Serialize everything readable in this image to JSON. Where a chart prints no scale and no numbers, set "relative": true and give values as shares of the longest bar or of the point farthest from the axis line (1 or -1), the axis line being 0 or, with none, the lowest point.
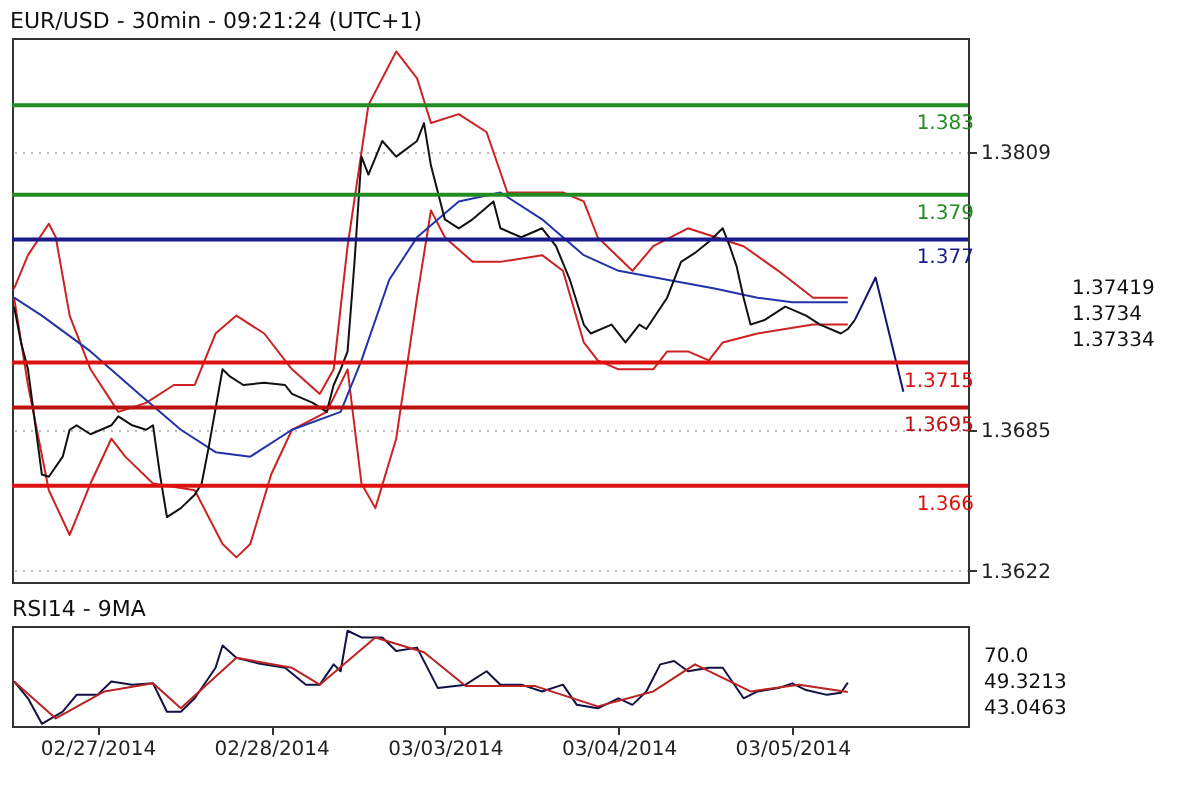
{
  "chart_data": [
    {
      "type": "line",
      "title": "EUR/USD - 30min - 09:21:24 (UTC+1)",
      "categories": [
        null,
        null,
        null,
        null,
        null,
        null,
        null,
        null,
        null,
        null,
        null,
        null,
        null,
        null,
        null,
        null,
        null,
        null,
        null,
        null,
        null,
        null,
        null,
        null,
        null,
        null,
        null,
        null,
        null,
        null,
        null,
        null,
        null,
        null,
        null,
        null,
        null,
        null,
        null,
        null,
        null,
        null,
        null,
        null,
        null,
        null,
        null,
        null,
        null,
        null,
        null,
        null,
        null,
        null,
        null,
        null,
        null,
        null,
        null,
        null,
        null,
        null,
        null,
        null,
        null,
        null,
        null,
        null,
        null,
        null,
        null,
        null,
        null,
        null,
        null,
        null,
        null,
        null,
        null,
        null,
        null,
        null,
        null,
        null,
        null,
        null,
        null,
        null,
        null,
        null,
        null,
        null,
        null,
        null,
        null,
        null,
        null,
        null,
        null,
        null,
        null,
        null,
        null,
        null,
        null,
        null,
        null,
        null,
        null,
        null,
        null,
        null,
        null,
        null,
        null,
        null,
        null,
        null,
        null,
        null,
        null,
        null,
        null,
        null,
        null,
        null,
        null,
        null,
        null,
        null,
        null,
        null,
        null,
        null,
        null,
        null,
        null,
        null
      ],
      "ylim": [
        1.3617,
        1.386
      ],
      "yticks": [
        1.3622,
        1.3685,
        1.3809
      ],
      "grid": "y",
      "tick_labels": "y",
      "series": [
        {
          "color": "#cc2222",
          "values": [
            1.3748,
            null,
            1.3763,
            null,
            null,
            1.3777,
            1.3771,
            null,
            1.3736,
            null,
            null,
            1.3712,
            null,
            null,
            null,
            1.3693,
            null,
            null,
            null,
            1.3697,
            null,
            null,
            null,
            1.3705,
            null,
            null,
            1.3705,
            null,
            null,
            1.3728,
            null,
            null,
            1.3736,
            null,
            null,
            null,
            1.3728,
            null,
            null,
            null,
            1.3712,
            null,
            null,
            null,
            1.3701,
            null,
            1.3712,
            null,
            1.3767,
            null,
            null,
            1.383,
            null,
            null,
            null,
            1.3854,
            null,
            null,
            1.3842,
            null,
            1.3822,
            null,
            null,
            null,
            1.3826,
            null,
            null,
            null,
            1.3818,
            null,
            null,
            1.3791,
            null,
            null,
            null,
            null,
            null,
            null,
            null,
            1.3791,
            null,
            null,
            1.3787,
            null,
            1.3771,
            null,
            null,
            null,
            null,
            1.3756,
            null,
            null,
            1.3767,
            null,
            null,
            null,
            null,
            1.3775,
            null,
            null,
            null,
            1.3771,
            null,
            null,
            null,
            1.3767,
            null,
            null,
            null,
            null,
            1.3756,
            null,
            null,
            null,
            null,
            1.3744,
            null,
            null,
            null,
            null,
            1.3744,
            null,
            null,
            null,
            null,
            null,
            null,
            null,
            null,
            null,
            null,
            null,
            null,
            null,
            null,
            null,
            null,
            null
          ]
        },
        {
          "color": "#cc2222",
          "values": [
            1.3744,
            null,
            1.3705,
            null,
            null,
            1.3658,
            null,
            null,
            1.3638,
            null,
            null,
            1.3661,
            null,
            null,
            1.3681,
            null,
            1.3673,
            null,
            null,
            null,
            1.3661,
            null,
            null,
            null,
            null,
            null,
            1.3658,
            null,
            null,
            null,
            1.3634,
            null,
            1.3628,
            null,
            1.3634,
            null,
            null,
            1.3665,
            null,
            null,
            1.3685,
            null,
            null,
            null,
            null,
            1.3693,
            null,
            null,
            1.3712,
            null,
            1.3661,
            null,
            1.365,
            null,
            null,
            1.3681,
            null,
            null,
            1.3744,
            null,
            1.3783,
            null,
            1.3771,
            null,
            null,
            null,
            1.376,
            null,
            null,
            null,
            1.376,
            null,
            null,
            null,
            null,
            null,
            1.3763,
            null,
            null,
            1.3756,
            null,
            null,
            1.3724,
            null,
            1.3716,
            null,
            null,
            1.3712,
            null,
            null,
            null,
            null,
            1.3712,
            null,
            1.372,
            null,
            null,
            1.372,
            null,
            null,
            1.3716,
            null,
            1.3724,
            null,
            null,
            null,
            null,
            1.3728,
            null,
            null,
            null,
            null,
            null,
            null,
            null,
            1.3732,
            null,
            null,
            null,
            null,
            1.3732,
            null,
            null,
            null,
            null,
            null,
            null,
            null,
            null,
            null,
            null,
            null,
            null,
            null,
            null,
            null,
            null,
            null
          ]
        },
        {
          "color": "#2233aa",
          "values": [
            1.3744,
            null,
            null,
            null,
            1.3736,
            null,
            null,
            null,
            null,
            null,
            null,
            1.372,
            null,
            null,
            null,
            null,
            null,
            null,
            1.3701,
            null,
            null,
            null,
            null,
            null,
            1.3685,
            null,
            null,
            null,
            null,
            1.3675,
            null,
            null,
            null,
            null,
            1.3673,
            null,
            null,
            null,
            null,
            null,
            1.3685,
            null,
            null,
            null,
            null,
            null,
            null,
            1.3693,
            null,
            null,
            1.3716,
            null,
            null,
            null,
            1.3752,
            null,
            null,
            null,
            1.3771,
            null,
            null,
            null,
            null,
            null,
            1.3787,
            null,
            null,
            null,
            null,
            null,
            1.3791,
            null,
            null,
            null,
            null,
            null,
            1.3779,
            null,
            null,
            null,
            null,
            null,
            1.3763,
            null,
            null,
            null,
            null,
            1.3756,
            null,
            null,
            null,
            null,
            null,
            null,
            1.3752,
            null,
            null,
            null,
            null,
            null,
            null,
            1.3748,
            null,
            null,
            null,
            null,
            null,
            1.3744,
            null,
            null,
            null,
            null,
            1.3742,
            null,
            null,
            null,
            null,
            null,
            null,
            null,
            1.3742,
            null,
            null,
            null,
            null,
            null,
            null,
            null,
            null,
            null,
            null,
            null,
            null,
            null,
            null,
            null,
            null,
            null
          ]
        },
        {
          "color": "#111111",
          "values": [
            1.374,
            1.3724,
            1.3712,
            null,
            1.3665,
            1.3664,
            null,
            1.3673,
            1.3685,
            1.3687,
            null,
            1.3683,
            null,
            null,
            1.3687,
            1.3691,
            null,
            1.3687,
            null,
            1.3685,
            1.3687,
            1.3665,
            1.3646,
            null,
            1.365,
            null,
            1.3656,
            1.3661,
            1.3677,
            null,
            1.3712,
            1.3709,
            null,
            1.3705,
            null,
            null,
            1.3706,
            null,
            null,
            1.3705,
            1.3701,
            null,
            null,
            1.3697,
            null,
            1.3693,
            1.3705,
            1.3712,
            1.372,
            1.376,
            1.3807,
            1.3799,
            null,
            1.3814,
            null,
            1.3807,
            null,
            null,
            1.3814,
            1.3822,
            1.3803,
            null,
            1.3779,
            null,
            1.3775,
            null,
            1.3779,
            null,
            null,
            1.3787,
            1.3775,
            null,
            null,
            1.3771,
            null,
            null,
            1.3775,
            null,
            1.3767,
            null,
            1.3752,
            null,
            1.3732,
            1.3728,
            null,
            null,
            1.3732,
            null,
            1.3724,
            null,
            1.3732,
            1.373,
            null,
            null,
            1.3744,
            null,
            1.376,
            null,
            1.3764,
            null,
            1.3769,
            null,
            1.3775,
            1.3767,
            1.3758,
            1.3744,
            1.3732,
            null,
            1.3734,
            null,
            null,
            1.374,
            null,
            null,
            1.3736,
            null,
            1.3732,
            null,
            null,
            1.3728,
            1.373,
            1.3734,
            null,
            null,
            null,
            null,
            null,
            null,
            null,
            null,
            null,
            null,
            null,
            null,
            null,
            null,
            null,
            null
          ]
        },
        {
          "color": "#14146e",
          "values": [
            null,
            null,
            null,
            null,
            null,
            null,
            null,
            null,
            null,
            null,
            null,
            null,
            null,
            null,
            null,
            null,
            null,
            null,
            null,
            null,
            null,
            null,
            null,
            null,
            null,
            null,
            null,
            null,
            null,
            null,
            null,
            null,
            null,
            null,
            null,
            null,
            null,
            null,
            null,
            null,
            null,
            null,
            null,
            null,
            null,
            null,
            null,
            null,
            null,
            null,
            null,
            null,
            null,
            null,
            null,
            null,
            null,
            null,
            null,
            null,
            null,
            null,
            null,
            null,
            null,
            null,
            null,
            null,
            null,
            null,
            null,
            null,
            null,
            null,
            null,
            null,
            null,
            null,
            null,
            null,
            null,
            null,
            null,
            null,
            null,
            null,
            null,
            null,
            null,
            null,
            null,
            null,
            null,
            null,
            null,
            null,
            null,
            null,
            null,
            null,
            null,
            null,
            null,
            null,
            null,
            null,
            null,
            null,
            null,
            null,
            null,
            null,
            null,
            null,
            null,
            null,
            null,
            null,
            null,
            null,
            null,
            1.3734,
            null,
            null,
            1.3753,
            null,
            null,
            null,
            1.3702,
            null,
            null,
            null,
            null,
            null,
            null,
            null,
            null,
            null
          ]
        }
      ],
      "ref_lines": [
        {
          "axis": "y",
          "value": 1.383,
          "label": "1.383",
          "color": "#228b22"
        },
        {
          "axis": "y",
          "value": 1.379,
          "label": "1.379",
          "color": "#228b22"
        },
        {
          "axis": "y",
          "value": 1.377,
          "label": "1.377",
          "color": "#1a1a8c"
        },
        {
          "axis": "y",
          "value": 1.3715,
          "label": "1.3715",
          "color": "#dd1111"
        },
        {
          "axis": "y",
          "value": 1.3695,
          "label": "1.3695",
          "color": "#bb1111"
        },
        {
          "axis": "y",
          "value": 1.366,
          "label": "1.366",
          "color": "#dd1111"
        }
      ],
      "annotations": [
        "1.37419",
        "1.3734",
        "1.37334"
      ]
    },
    {
      "type": "line",
      "title": "RSI14 - 9MA",
      "categories": [
        null,
        null,
        null,
        null,
        null,
        null,
        null,
        null,
        null,
        null,
        null,
        null,
        "02/27/2014",
        null,
        null,
        null,
        null,
        null,
        null,
        null,
        null,
        null,
        null,
        null,
        null,
        null,
        null,
        null,
        null,
        null,
        null,
        null,
        null,
        null,
        null,
        null,
        null,
        "02/28/2014",
        null,
        null,
        null,
        null,
        null,
        null,
        null,
        null,
        null,
        null,
        null,
        null,
        null,
        null,
        null,
        null,
        null,
        null,
        null,
        null,
        null,
        null,
        null,
        null,
        "03/03/2014",
        null,
        null,
        null,
        null,
        null,
        null,
        null,
        null,
        null,
        null,
        null,
        null,
        null,
        null,
        null,
        null,
        null,
        null,
        null,
        null,
        null,
        null,
        null,
        null,
        "03/04/2014",
        null,
        null,
        null,
        null,
        null,
        null,
        null,
        null,
        null,
        null,
        null,
        null,
        null,
        null,
        null,
        null,
        null,
        null,
        null,
        null,
        null,
        null,
        null,
        null,
        "03/05/2014",
        null,
        null,
        null,
        null,
        null,
        null,
        null,
        null,
        null,
        null,
        null,
        null,
        null,
        null,
        null,
        null,
        null,
        null,
        null,
        null,
        null,
        null,
        null,
        null,
        null
      ],
      "relative": true,
      "series": [
        {
          "color": "#111144",
          "values": [
            0.468,
            null,
            0.291,
            null,
            0.023,
            null,
            null,
            0.15,
            null,
            0.327,
            null,
            null,
            0.327,
            null,
            0.468,
            null,
            null,
            0.434,
            null,
            null,
            0.448,
            null,
            0.15,
            null,
            0.15,
            null,
            0.291,
            null,
            null,
            0.611,
            0.845,
            null,
            0.716,
            null,
            null,
            0.66,
            null,
            null,
            null,
            0.611,
            null,
            null,
            0.434,
            null,
            0.434,
            null,
            0.647,
            0.575,
            1,
            null,
            0.93,
            null,
            null,
            0.93,
            null,
            0.788,
            null,
            null,
            0.823,
            null,
            null,
            0.398,
            null,
            null,
            null,
            0.434,
            null,
            null,
            0.575,
            null,
            0.434,
            null,
            null,
            0.434,
            null,
            null,
            0.363,
            null,
            null,
            0.434,
            null,
            0.222,
            null,
            null,
            0.186,
            null,
            null,
            0.291,
            null,
            0.222,
            null,
            0.363,
            null,
            0.647,
            null,
            0.682,
            null,
            0.575,
            null,
            null,
            0.611,
            null,
            0.611,
            null,
            null,
            0.291,
            null,
            0.363,
            null,
            null,
            0.398,
            null,
            0.448,
            null,
            0.377,
            null,
            null,
            0.327,
            null,
            0.349,
            0.455,
            null,
            null,
            null,
            null,
            null,
            null,
            null,
            null,
            null,
            null,
            null,
            null,
            null,
            null,
            null,
            null,
            null
          ]
        },
        {
          "color": "#bb2222",
          "values": [
            0.468,
            null,
            null,
            null,
            null,
            null,
            0.079,
            null,
            null,
            null,
            null,
            null,
            null,
            0.363,
            null,
            null,
            null,
            null,
            null,
            null,
            0.448,
            null,
            null,
            null,
            0.186,
            null,
            null,
            null,
            null,
            null,
            null,
            null,
            0.716,
            null,
            null,
            null,
            null,
            null,
            null,
            null,
            0.611,
            null,
            null,
            null,
            0.434,
            null,
            null,
            null,
            null,
            null,
            null,
            null,
            0.93,
            null,
            null,
            null,
            null,
            null,
            null,
            0.774,
            null,
            null,
            null,
            null,
            null,
            0.419,
            null,
            null,
            null,
            null,
            null,
            null,
            null,
            null,
            null,
            0.419,
            null,
            null,
            null,
            null,
            null,
            null,
            null,
            null,
            0.206,
            null,
            null,
            null,
            null,
            null,
            null,
            null,
            0.363,
            null,
            null,
            null,
            null,
            null,
            0.647,
            null,
            null,
            null,
            null,
            null,
            null,
            null,
            0.363,
            null,
            null,
            null,
            null,
            null,
            null,
            0.434,
            null,
            null,
            null,
            null,
            null,
            null,
            0.357,
            null,
            null,
            null,
            null,
            null,
            null,
            null,
            null,
            null,
            null,
            null,
            null,
            null,
            null,
            null,
            null,
            null
          ]
        }
      ],
      "annotations": [
        "70.0",
        "49.3213",
        "43.0463"
      ]
    }
  ]
}
